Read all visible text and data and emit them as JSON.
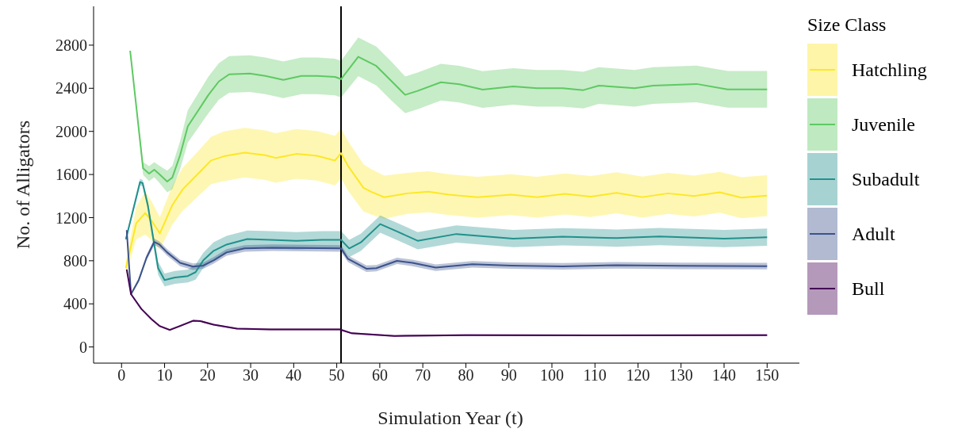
{
  "chart_data": {
    "type": "line",
    "xlabel": "Simulation Year (t)",
    "ylabel": "No. of Alligators",
    "legend_title": "Size Class",
    "legend": "right",
    "grid": false,
    "marker": "none",
    "line_style": "solid",
    "xlim": [
      -6.5,
      157.5
    ],
    "ylim": [
      -150,
      3160
    ],
    "xticks": [
      0,
      10,
      20,
      30,
      40,
      50,
      60,
      70,
      80,
      90,
      100,
      110,
      120,
      130,
      140,
      150
    ],
    "yticks": [
      0,
      400,
      800,
      1200,
      1600,
      2000,
      2400,
      2800
    ],
    "ref_lines": [
      {
        "axis": "x",
        "value": 51,
        "color": "#000000"
      }
    ],
    "series": [
      {
        "name": "Hatchling",
        "color": "#fde725",
        "x": [
          1,
          3.4,
          5.5,
          7,
          8.9,
          11.8,
          14.2,
          17.8,
          20.8,
          23.8,
          28.6,
          33.4,
          35.8,
          40.6,
          45.4,
          49.6,
          51,
          52.6,
          56.2,
          58,
          61,
          66.4,
          71.3,
          76,
          82.7,
          90.5,
          96.5,
          103,
          109,
          115,
          121,
          127,
          133,
          139,
          144,
          150
        ],
        "values": [
          731,
          1147,
          1243,
          1170,
          1053,
          1316,
          1462,
          1608,
          1730,
          1769,
          1803,
          1779,
          1754,
          1791,
          1773,
          1730,
          1798,
          1681,
          1477,
          1440,
          1389,
          1425,
          1440,
          1413,
          1389,
          1413,
          1389,
          1420,
          1395,
          1430,
          1390,
          1425,
          1400,
          1435,
          1385,
          1404
        ],
        "lower": [
          671,
          997,
          1043,
          990,
          903,
          1136,
          1262,
          1398,
          1510,
          1539,
          1573,
          1549,
          1524,
          1561,
          1543,
          1500,
          1568,
          1451,
          1257,
          1230,
          1189,
          1235,
          1250,
          1223,
          1199,
          1223,
          1199,
          1230,
          1205,
          1240,
          1200,
          1235,
          1210,
          1245,
          1195,
          1214
        ],
        "upper": [
          791,
          1297,
          1443,
          1350,
          1203,
          1496,
          1662,
          1818,
          1950,
          1999,
          2033,
          2009,
          1984,
          2021,
          2003,
          1960,
          2028,
          1911,
          1697,
          1650,
          1589,
          1615,
          1630,
          1603,
          1579,
          1603,
          1579,
          1610,
          1585,
          1620,
          1580,
          1615,
          1590,
          1625,
          1575,
          1594
        ]
      },
      {
        "name": "Juvenile",
        "color": "#5ec962",
        "x": [
          2,
          5,
          6.4,
          7.6,
          8.8,
          10.6,
          11.8,
          13.6,
          15.4,
          17.8,
          20.2,
          22.6,
          25,
          29.8,
          33.4,
          37.6,
          41.8,
          45.4,
          49.6,
          51,
          55,
          59.2,
          62.8,
          65.9,
          68.8,
          74.2,
          78.5,
          83.9,
          91,
          96.5,
          102.5,
          107.3,
          110.9,
          119.2,
          123.5,
          133.6,
          140.8,
          150
        ],
        "values": [
          2748,
          1657,
          1608,
          1645,
          1602,
          1535,
          1572,
          1779,
          2047,
          2193,
          2339,
          2463,
          2529,
          2536,
          2515,
          2478,
          2515,
          2515,
          2505,
          2485,
          2692,
          2607,
          2463,
          2339,
          2376,
          2456,
          2438,
          2388,
          2417,
          2400,
          2400,
          2383,
          2425,
          2400,
          2425,
          2440,
          2390,
          2390
        ],
        "lower": [
          2748,
          1597,
          1538,
          1575,
          1522,
          1435,
          1462,
          1649,
          1897,
          2033,
          2169,
          2293,
          2359,
          2366,
          2345,
          2308,
          2345,
          2345,
          2335,
          2315,
          2512,
          2427,
          2283,
          2169,
          2206,
          2286,
          2268,
          2218,
          2247,
          2230,
          2230,
          2213,
          2255,
          2230,
          2255,
          2270,
          2220,
          2220
        ],
        "upper": [
          2748,
          1717,
          1678,
          1715,
          1682,
          1635,
          1682,
          1909,
          2197,
          2353,
          2509,
          2633,
          2699,
          2706,
          2685,
          2648,
          2685,
          2685,
          2675,
          2655,
          2872,
          2787,
          2643,
          2509,
          2546,
          2626,
          2608,
          2558,
          2587,
          2570,
          2570,
          2553,
          2595,
          2570,
          2595,
          2610,
          2560,
          2560
        ]
      },
      {
        "name": "Subadult",
        "color": "#21918c",
        "x": [
          1,
          4.3,
          4.9,
          6.1,
          7.3,
          8.5,
          10,
          12.4,
          15.4,
          17.2,
          19,
          21.4,
          24.4,
          29.2,
          34.6,
          40.6,
          46.6,
          51,
          52.9,
          55.6,
          60.1,
          64,
          68.8,
          77.8,
          91,
          102.5,
          115,
          125,
          140,
          150
        ],
        "values": [
          1000,
          1530,
          1520,
          1316,
          1023,
          731,
          621,
          645,
          658,
          694,
          804,
          892,
          950,
          1001,
          994,
          985,
          994,
          994,
          914,
          970,
          1140,
          1072,
          985,
          1048,
          1005,
          1023,
          1010,
          1025,
          1005,
          1018
        ],
        "lower": [
          980,
          1500,
          1490,
          1276,
          973,
          671,
          561,
          585,
          598,
          624,
          734,
          812,
          870,
          921,
          914,
          905,
          914,
          914,
          834,
          890,
          1060,
          992,
          905,
          968,
          925,
          943,
          930,
          945,
          925,
          938
        ],
        "upper": [
          1020,
          1560,
          1550,
          1356,
          1073,
          791,
          681,
          705,
          718,
          764,
          874,
          972,
          1030,
          1081,
          1074,
          1065,
          1074,
          1074,
          994,
          1050,
          1220,
          1152,
          1065,
          1128,
          1085,
          1103,
          1090,
          1105,
          1085,
          1098
        ]
      },
      {
        "name": "Adult",
        "color": "#3b528b",
        "x": [
          1.2,
          2.2,
          4,
          5.8,
          7.6,
          8.8,
          10.6,
          13.6,
          16.6,
          19,
          21.4,
          24.4,
          28.6,
          35,
          51,
          52.6,
          56.9,
          59.2,
          64,
          67.6,
          73,
          81.5,
          90.5,
          102.5,
          115,
          130,
          150
        ],
        "values": [
          1084,
          490,
          621,
          828,
          975,
          950,
          877,
          780,
          745,
          755,
          804,
          877,
          914,
          921,
          914,
          818,
          726,
          731,
          799,
          780,
          736,
          767,
          755,
          748,
          758,
          752,
          750
        ],
        "lower": [
          1074,
          480,
          601,
          803,
          945,
          920,
          847,
          750,
          715,
          725,
          774,
          847,
          884,
          891,
          884,
          788,
          696,
          701,
          769,
          750,
          706,
          737,
          725,
          718,
          728,
          722,
          720
        ],
        "upper": [
          1094,
          500,
          641,
          853,
          1005,
          980,
          907,
          810,
          775,
          785,
          834,
          907,
          944,
          951,
          944,
          848,
          756,
          761,
          829,
          810,
          766,
          797,
          785,
          778,
          788,
          782,
          780
        ]
      },
      {
        "name": "Bull",
        "color": "#440154",
        "x": [
          1.2,
          2.2,
          4.6,
          7,
          8.8,
          11.2,
          13.6,
          16.6,
          18.4,
          21.4,
          26.8,
          34.6,
          50.7,
          53.5,
          63.4,
          80,
          110,
          150
        ],
        "values": [
          719,
          490,
          353,
          256,
          195,
          158,
          195,
          243,
          239,
          207,
          170,
          163,
          163,
          127,
          102,
          110,
          108,
          110
        ],
        "lower": [
          711,
          482,
          345,
          248,
          187,
          150,
          187,
          235,
          231,
          199,
          162,
          155,
          155,
          119,
          94,
          102,
          100,
          102
        ],
        "upper": [
          727,
          498,
          361,
          264,
          203,
          166,
          203,
          251,
          247,
          215,
          178,
          171,
          171,
          135,
          110,
          118,
          116,
          118
        ]
      }
    ]
  }
}
